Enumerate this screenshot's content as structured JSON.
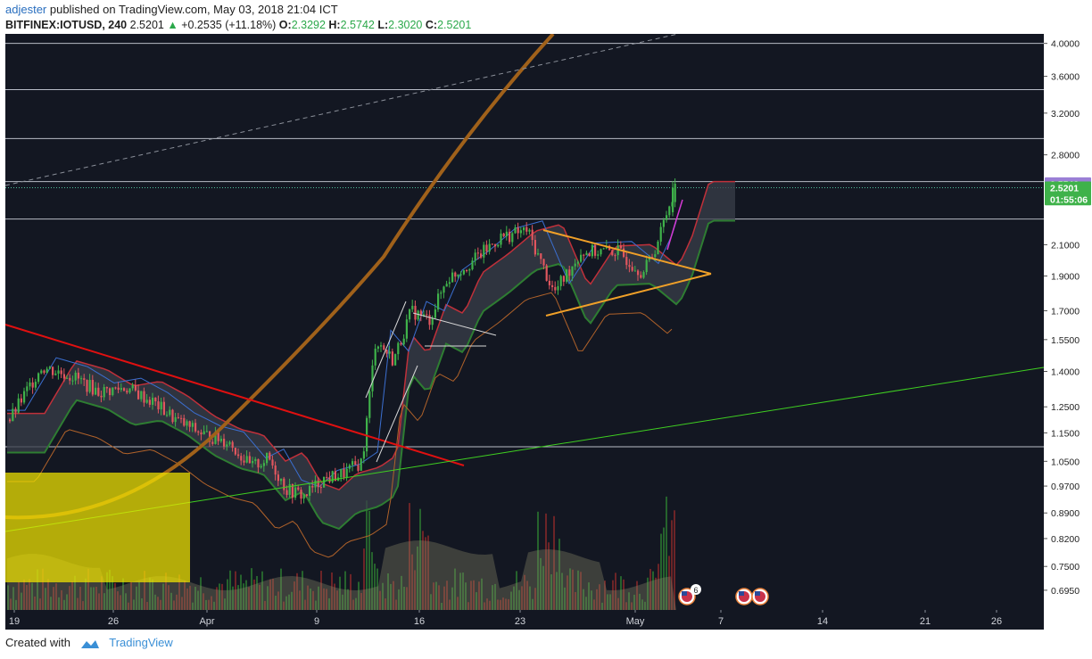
{
  "header": {
    "author": "adjester",
    "published_text": " published on TradingView.com, May 03, 2018 21:04 ICT",
    "symbol": "BITFINEX:IOTUSD, 240",
    "last": "2.5201",
    "arrow": "▲",
    "change": "+0.2535 (+11.18%)",
    "o_label": "O:",
    "o_value": "2.3292",
    "h_label": "H:",
    "h_value": "2.5742",
    "l_label": "L:",
    "l_value": "2.3020",
    "c_label": "C:",
    "c_value": "2.5201"
  },
  "footer": {
    "created_with": "Created with",
    "brand": "TradingView"
  },
  "colors": {
    "background": "#131722",
    "bull": "#3fb24a",
    "bear": "#e0565e",
    "trendline_red": "#e01010",
    "trendline_green": "#3fcf21",
    "triangle": "#f0a028",
    "envelope": "#a0611a",
    "highlight_box": "#f2e600"
  },
  "chart_data": {
    "type": "candlestick",
    "x_tick_labels": [
      "19",
      "26",
      "Apr",
      "9",
      "16",
      "23",
      "May",
      "7",
      "14",
      "21",
      "26"
    ],
    "y_tick_labels": [
      "4.0000",
      "3.6000",
      "3.2000",
      "2.8000",
      "2.1000",
      "1.9000",
      "1.7000",
      "1.5500",
      "1.4000",
      "1.2500",
      "1.1500",
      "1.0500",
      "0.9700",
      "0.8900",
      "0.8200",
      "0.7500",
      "0.6950"
    ],
    "y_scale": "log",
    "ylim": [
      0.66,
      4.1
    ],
    "horizontal_levels": [
      4.0,
      3.45,
      2.95,
      2.57,
      2.28,
      1.1
    ],
    "price_labels": [
      {
        "text": "2.5542",
        "value": 2.5542,
        "color": "#9b7fd6"
      },
      {
        "text": "2.5201",
        "value": 2.5201,
        "color": "#3fb24a"
      },
      {
        "text": "01:55:06",
        "value": 2.43,
        "color": "#3fb24a"
      }
    ],
    "series_anchors": [
      {
        "x": 0,
        "v": 1.2
      },
      {
        "x": 1,
        "v": 1.42
      },
      {
        "x": 2,
        "v": 1.38
      },
      {
        "x": 3,
        "v": 1.31
      },
      {
        "x": 4,
        "v": 1.33
      },
      {
        "x": 5,
        "v": 1.27
      },
      {
        "x": 6,
        "v": 1.19
      },
      {
        "x": 7,
        "v": 1.14
      },
      {
        "x": 8,
        "v": 1.12
      },
      {
        "x": 9,
        "v": 1.03
      },
      {
        "x": 10,
        "v": 1.06
      },
      {
        "x": 11,
        "v": 0.96
      },
      {
        "x": 12,
        "v": 0.94
      },
      {
        "x": 13,
        "v": 0.99
      },
      {
        "x": 14,
        "v": 1.01
      },
      {
        "x": 15,
        "v": 1.05
      },
      {
        "x": 16,
        "v": 1.55
      },
      {
        "x": 17,
        "v": 1.45
      },
      {
        "x": 18,
        "v": 1.7
      },
      {
        "x": 19,
        "v": 1.65
      },
      {
        "x": 20,
        "v": 1.88
      },
      {
        "x": 21,
        "v": 2.0
      },
      {
        "x": 22,
        "v": 2.15
      },
      {
        "x": 23,
        "v": 2.2
      },
      {
        "x": 24,
        "v": 1.8
      },
      {
        "x": 25,
        "v": 2.05
      },
      {
        "x": 26,
        "v": 2.06
      },
      {
        "x": 27,
        "v": 1.92
      },
      {
        "x": 28,
        "v": 2.1
      },
      {
        "x": 29,
        "v": 2.52
      }
    ]
  }
}
